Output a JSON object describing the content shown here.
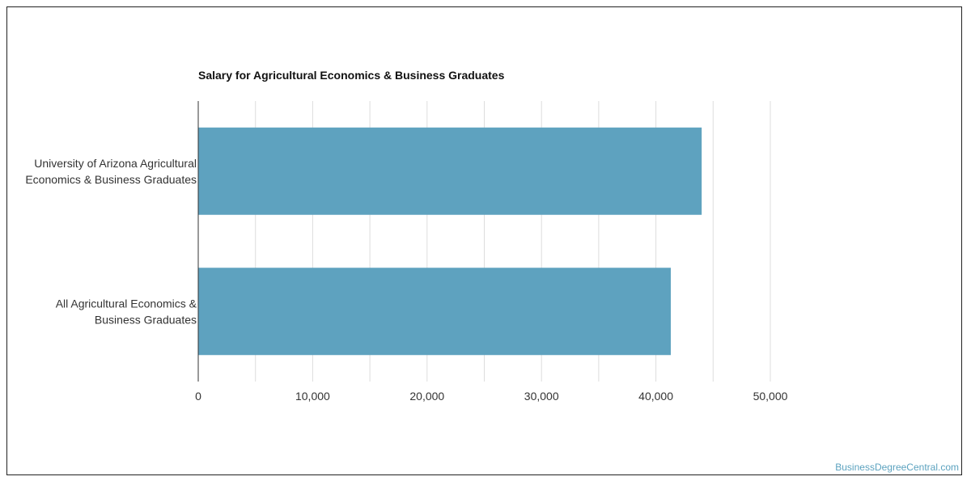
{
  "chart_data": {
    "type": "bar",
    "orientation": "horizontal",
    "title": "Salary for Agricultural Economics & Business Graduates",
    "categories": [
      [
        "University of Arizona Agricultural",
        "Economics & Business Graduates"
      ],
      [
        "All Agricultural Economics &",
        "Business Graduates"
      ]
    ],
    "values": [
      44000,
      41300
    ],
    "xlim": [
      0,
      50000
    ],
    "xticks": [
      0,
      10000,
      20000,
      30000,
      40000,
      50000
    ],
    "xtick_labels": [
      "0",
      "10,000",
      "20,000",
      "30,000",
      "40,000",
      "50,000"
    ],
    "grid": true,
    "bar_color": "#5ea2bf",
    "grid_color": "#dddddd"
  },
  "watermark": "BusinessDegreeCentral.com"
}
